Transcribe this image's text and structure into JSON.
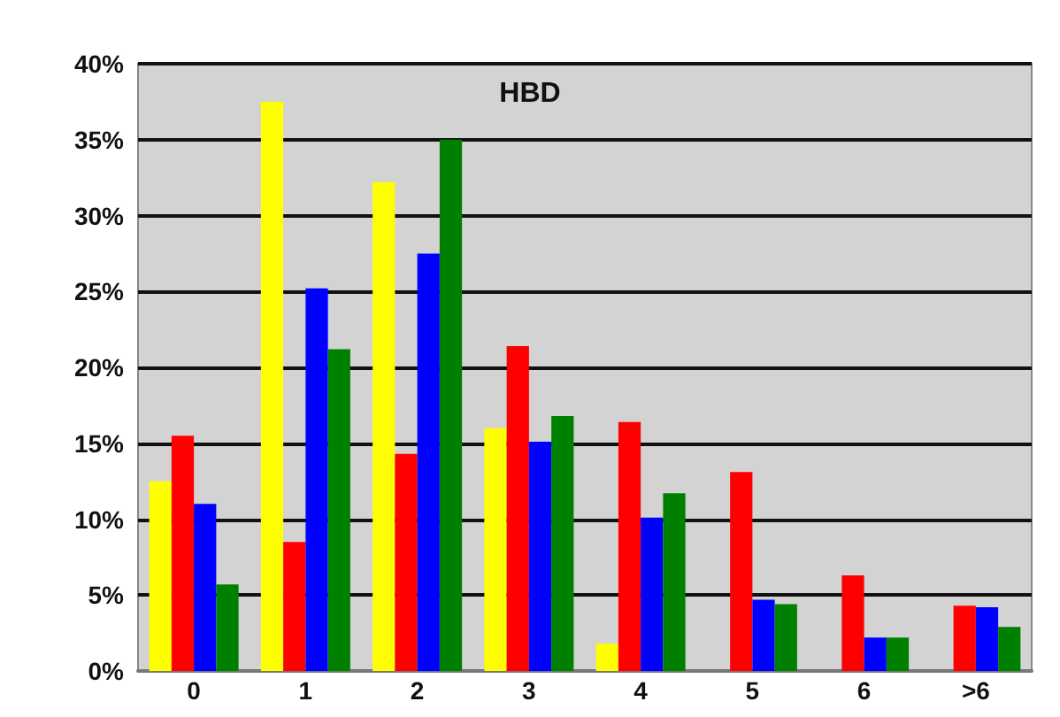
{
  "chart_data": {
    "type": "bar",
    "title": "HBD",
    "categories": [
      "0",
      "1",
      "2",
      "3",
      "4",
      "5",
      "6",
      ">6"
    ],
    "series": [
      {
        "color": "#ffff00",
        "values": [
          12.5,
          37.5,
          32.2,
          16,
          1.8,
          0,
          0,
          0
        ]
      },
      {
        "color": "#ff0000",
        "values": [
          15.5,
          8.5,
          14.3,
          21.4,
          16.4,
          13.1,
          6.3,
          4.3
        ]
      },
      {
        "color": "#0000ff",
        "values": [
          11,
          25.2,
          27.5,
          15.1,
          10.1,
          4.7,
          2.2,
          4.2
        ]
      },
      {
        "color": "#008000",
        "values": [
          5.7,
          21.2,
          35,
          16.8,
          11.7,
          4.4,
          2.2,
          2.9
        ]
      }
    ],
    "ylim": [
      0,
      40
    ],
    "yticks": [
      {
        "value": 0,
        "label": "0%"
      },
      {
        "value": 5,
        "label": "5%"
      },
      {
        "value": 10,
        "label": "10%"
      },
      {
        "value": 15,
        "label": "15%"
      },
      {
        "value": 20,
        "label": "20%"
      },
      {
        "value": 25,
        "label": "25%"
      },
      {
        "value": 30,
        "label": "30%"
      },
      {
        "value": 35,
        "label": "35%"
      },
      {
        "value": 40,
        "label": "40%"
      }
    ],
    "grid": true
  }
}
